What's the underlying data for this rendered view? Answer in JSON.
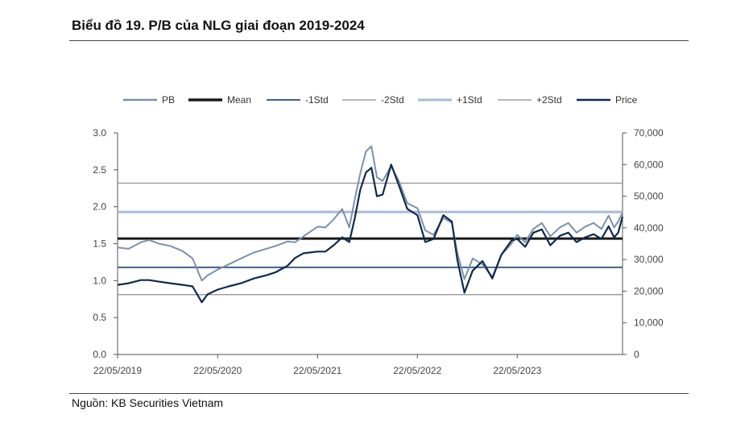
{
  "header": {
    "title": "Biểu đồ 19. P/B của NLG giai đoạn 2019-2024"
  },
  "footer": {
    "source": "Nguồn: KB Securities Vietnam"
  },
  "colors": {
    "pb": "#7b91ad",
    "mean": "#1a1a1a",
    "minus1std": "#3d6287",
    "minus2std": "#8c8c8c",
    "plus1std": "#a8bbd3",
    "plus2std": "#8c8c8c",
    "price": "#0e2a4e"
  },
  "chart_data": {
    "type": "line",
    "title": "Biểu đồ 19. P/B của NLG giai đoạn 2019-2024",
    "legend": [
      "PB",
      "Mean",
      "-1Std",
      "-2Std",
      "+1Std",
      "+2Std",
      "Price"
    ],
    "legend_position": "top",
    "y_left": {
      "ylim": [
        0,
        3.0
      ],
      "ticks": [
        "0.0",
        "0.5",
        "1.0",
        "1.5",
        "2.0",
        "2.5",
        "3.0"
      ]
    },
    "y_right": {
      "ylim": [
        0,
        70000
      ],
      "ticks": [
        "0",
        "10,000",
        "20,000",
        "30,000",
        "40,000",
        "50,000",
        "60,000",
        "70,000"
      ]
    },
    "x_ticks": [
      "22/05/2019",
      "22/05/2020",
      "22/05/2021",
      "22/05/2022",
      "22/05/2023"
    ],
    "bands": {
      "mean": 1.57,
      "minus1std": 1.18,
      "minus2std": 0.81,
      "plus1std": 1.93,
      "plus2std": 2.32
    },
    "series": [
      {
        "name": "PB",
        "axis": "left",
        "x": [
          "2019-05-22",
          "2019-07-01",
          "2019-08-15",
          "2019-09-15",
          "2019-10-20",
          "2019-12-01",
          "2020-01-15",
          "2020-02-20",
          "2020-03-25",
          "2020-04-15",
          "2020-05-22",
          "2020-07-01",
          "2020-08-15",
          "2020-10-01",
          "2020-11-15",
          "2020-12-20",
          "2021-02-01",
          "2021-03-01",
          "2021-04-01",
          "2021-05-22",
          "2021-06-20",
          "2021-07-20",
          "2021-08-20",
          "2021-09-15",
          "2021-10-05",
          "2021-10-25",
          "2021-11-15",
          "2021-12-05",
          "2021-12-25",
          "2022-01-15",
          "2022-02-15",
          "2022-03-15",
          "2022-04-15",
          "2022-05-22",
          "2022-06-20",
          "2022-07-20",
          "2022-08-25",
          "2022-09-25",
          "2022-10-15",
          "2022-11-10",
          "2022-12-10",
          "2023-01-15",
          "2023-02-20",
          "2023-03-25",
          "2023-05-01",
          "2023-05-22",
          "2023-06-20",
          "2023-07-20",
          "2023-08-20",
          "2023-09-20",
          "2023-10-25",
          "2023-11-25",
          "2023-12-25",
          "2024-01-25",
          "2024-02-25",
          "2024-03-25",
          "2024-04-20",
          "2024-05-10",
          "2024-05-25",
          "2024-06-10"
        ],
        "values": [
          1.45,
          1.43,
          1.52,
          1.55,
          1.5,
          1.47,
          1.4,
          1.3,
          1.0,
          1.07,
          1.15,
          1.22,
          1.3,
          1.38,
          1.43,
          1.47,
          1.53,
          1.52,
          1.6,
          1.73,
          1.72,
          1.83,
          1.97,
          1.72,
          2.1,
          2.45,
          2.75,
          2.82,
          2.4,
          2.35,
          2.55,
          2.35,
          2.05,
          1.98,
          1.68,
          1.62,
          1.85,
          1.78,
          1.38,
          1.02,
          1.3,
          1.22,
          1.05,
          1.35,
          1.5,
          1.62,
          1.52,
          1.7,
          1.78,
          1.6,
          1.72,
          1.78,
          1.65,
          1.73,
          1.78,
          1.7,
          1.88,
          1.72,
          1.8,
          1.92
        ]
      },
      {
        "name": "Price",
        "axis": "right",
        "x": [
          "2019-05-22",
          "2019-07-01",
          "2019-08-15",
          "2019-09-15",
          "2019-10-20",
          "2019-12-01",
          "2020-01-15",
          "2020-02-20",
          "2020-03-25",
          "2020-04-15",
          "2020-05-22",
          "2020-07-01",
          "2020-08-15",
          "2020-10-01",
          "2020-11-15",
          "2020-12-20",
          "2021-02-01",
          "2021-03-01",
          "2021-04-01",
          "2021-05-22",
          "2021-06-20",
          "2021-07-20",
          "2021-08-20",
          "2021-09-15",
          "2021-10-05",
          "2021-10-25",
          "2021-11-15",
          "2021-12-05",
          "2021-12-25",
          "2022-01-15",
          "2022-02-15",
          "2022-03-15",
          "2022-04-15",
          "2022-05-22",
          "2022-06-20",
          "2022-07-20",
          "2022-08-25",
          "2022-09-25",
          "2022-10-15",
          "2022-11-10",
          "2022-12-10",
          "2023-01-15",
          "2023-02-20",
          "2023-03-25",
          "2023-05-01",
          "2023-05-22",
          "2023-06-20",
          "2023-07-20",
          "2023-08-20",
          "2023-09-20",
          "2023-10-25",
          "2023-11-25",
          "2023-12-25",
          "2024-01-25",
          "2024-02-25",
          "2024-03-25",
          "2024-04-20",
          "2024-05-10",
          "2024-05-25",
          "2024-06-10"
        ],
        "values": [
          22000,
          22500,
          23500,
          23500,
          23000,
          22500,
          22000,
          21500,
          16500,
          19000,
          20500,
          21500,
          22500,
          24000,
          25000,
          26000,
          28000,
          30500,
          32000,
          32500,
          32500,
          34500,
          37000,
          35500,
          43000,
          52000,
          57500,
          59000,
          50000,
          50500,
          60000,
          53500,
          46000,
          44000,
          35500,
          36500,
          44000,
          42000,
          30000,
          19500,
          26500,
          29500,
          24000,
          31500,
          36000,
          36500,
          34000,
          38500,
          39500,
          34500,
          37500,
          38500,
          35500,
          37000,
          38000,
          36500,
          40500,
          37000,
          38500,
          43500
        ]
      }
    ]
  }
}
